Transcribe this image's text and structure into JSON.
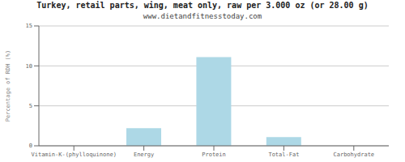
{
  "chart_data": {
    "type": "bar",
    "title": "Turkey, retail parts, wing, meat only, raw per 3.000 oz (or 28.00 g)",
    "subtitle": "www.dietandfitnesstoday.com",
    "categories": [
      "Vitamin-K-(phylloquinone)",
      "Energy",
      "Protein",
      "Total-Fat",
      "Carbohydrate"
    ],
    "values": [
      0.0,
      2.2,
      11.1,
      1.1,
      0.0
    ],
    "color": "#add8e6",
    "ylabel": "Percentage of RDH (%)",
    "ylim": [
      0,
      15
    ],
    "yticks": [
      0,
      5,
      10,
      15
    ],
    "grid": true
  }
}
